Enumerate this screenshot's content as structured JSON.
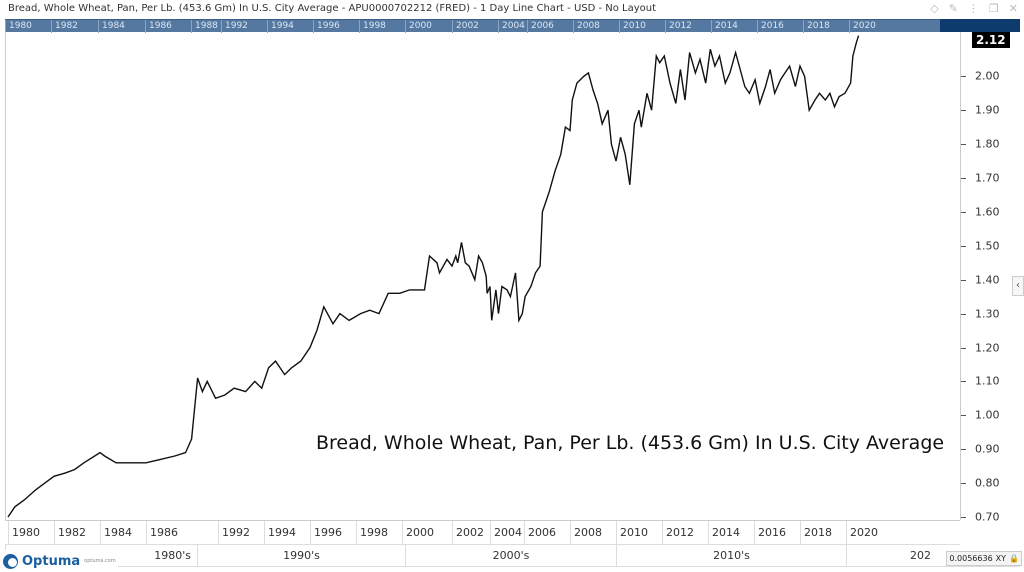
{
  "window": {
    "title": "Bread, Whole Wheat, Pan, Per Lb. (453.6 Gm) In U.S. City Average - APU0000702212 (FRED) - 1 Day Line Chart - USD - No Layout",
    "icons": [
      "diamond-icon",
      "pin-icon",
      "more-icon",
      "restore-icon",
      "close-icon"
    ]
  },
  "overview_ticks": [
    "1980",
    "1982",
    "1984",
    "1986",
    "1988",
    "1992",
    "1994",
    "1996",
    "1998",
    "2000",
    "2002",
    "2004",
    "2006",
    "2008",
    "2010",
    "2012",
    "2014",
    "2016",
    "2018",
    "2020"
  ],
  "last_price": "2.12",
  "annotation": "Bread, Whole Wheat, Pan, Per Lb. (453.6 Gm) In U.S. City Average",
  "decades": [
    "1980's",
    "1990's",
    "2000's",
    "2010's",
    "202"
  ],
  "footer": {
    "logo": "Optuma",
    "logo_url": "optuma.com",
    "scale": "0.0056636",
    "xy_label": "XY"
  },
  "colors": {
    "line": "#111111",
    "overview": "#5478a0",
    "overview_dark": "#0d3b6e",
    "logo": "#1a5fa0"
  },
  "chart_data": {
    "type": "line",
    "title": "Bread, Whole Wheat, Pan, Per Lb. (453.6 Gm) In U.S. City Average",
    "y_axis_position": "right",
    "ylim": [
      0.7,
      2.12
    ],
    "y_ticks": [
      "0.70",
      "0.80",
      "0.90",
      "1.00",
      "1.10",
      "1.20",
      "1.30",
      "1.40",
      "1.50",
      "1.60",
      "1.70",
      "1.80",
      "1.90",
      "2.00"
    ],
    "x_ticks": [
      "1980",
      "1982",
      "1984",
      "1986",
      "1992",
      "1994",
      "1996",
      "1998",
      "2000",
      "2002",
      "2004",
      "2006",
      "2008",
      "2010",
      "2012",
      "2014",
      "2016",
      "2018",
      "2020"
    ],
    "grid": false,
    "series": [
      {
        "points": [
          [
            1980.0,
            0.7
          ],
          [
            1980.3,
            0.73
          ],
          [
            1980.7,
            0.75
          ],
          [
            1981.2,
            0.78
          ],
          [
            1981.6,
            0.8
          ],
          [
            1982.0,
            0.82
          ],
          [
            1982.5,
            0.83
          ],
          [
            1982.9,
            0.84
          ],
          [
            1983.3,
            0.86
          ],
          [
            1984.0,
            0.89
          ],
          [
            1984.2,
            0.88
          ],
          [
            1984.7,
            0.86
          ],
          [
            1985.1,
            0.86
          ],
          [
            1985.5,
            0.86
          ],
          [
            1986.0,
            0.86
          ],
          [
            1987.2,
            0.87
          ],
          [
            1988.4,
            0.88
          ],
          [
            1989.3,
            0.89
          ],
          [
            1989.8,
            0.93
          ],
          [
            1990.3,
            1.11
          ],
          [
            1990.7,
            1.07
          ],
          [
            1991.1,
            1.1
          ],
          [
            1991.8,
            1.05
          ],
          [
            1992.3,
            1.06
          ],
          [
            1992.7,
            1.08
          ],
          [
            1993.2,
            1.07
          ],
          [
            1993.6,
            1.1
          ],
          [
            1993.9,
            1.08
          ],
          [
            1994.2,
            1.14
          ],
          [
            1994.5,
            1.16
          ],
          [
            1994.9,
            1.12
          ],
          [
            1995.2,
            1.14
          ],
          [
            1995.6,
            1.16
          ],
          [
            1996.0,
            1.2
          ],
          [
            1996.3,
            1.25
          ],
          [
            1996.6,
            1.32
          ],
          [
            1997.0,
            1.27
          ],
          [
            1997.3,
            1.3
          ],
          [
            1997.7,
            1.28
          ],
          [
            1998.2,
            1.3
          ],
          [
            1998.6,
            1.31
          ],
          [
            1999.0,
            1.3
          ],
          [
            1999.4,
            1.36
          ],
          [
            1999.9,
            1.36
          ],
          [
            2000.3,
            1.37
          ],
          [
            2000.9,
            1.37
          ],
          [
            2001.1,
            1.47
          ],
          [
            2001.4,
            1.45
          ],
          [
            2001.5,
            1.42
          ],
          [
            2001.8,
            1.46
          ],
          [
            2002.0,
            1.44
          ],
          [
            2002.2,
            1.47
          ],
          [
            2002.3,
            1.45
          ],
          [
            2002.5,
            1.51
          ],
          [
            2002.7,
            1.45
          ],
          [
            2002.9,
            1.44
          ],
          [
            2003.2,
            1.4
          ],
          [
            2003.4,
            1.47
          ],
          [
            2003.6,
            1.45
          ],
          [
            2003.8,
            1.41
          ],
          [
            2003.85,
            1.36
          ],
          [
            2004.0,
            1.38
          ],
          [
            2004.1,
            1.28
          ],
          [
            2004.35,
            1.37
          ],
          [
            2004.5,
            1.3
          ],
          [
            2004.7,
            1.38
          ],
          [
            2005.0,
            1.37
          ],
          [
            2005.2,
            1.35
          ],
          [
            2005.5,
            1.42
          ],
          [
            2005.7,
            1.28
          ],
          [
            2005.9,
            1.3
          ],
          [
            2006.05,
            1.35
          ],
          [
            2006.3,
            1.38
          ],
          [
            2006.5,
            1.42
          ],
          [
            2006.7,
            1.44
          ],
          [
            2006.8,
            1.6
          ],
          [
            2006.9,
            1.62
          ],
          [
            2007.1,
            1.66
          ],
          [
            2007.35,
            1.72
          ],
          [
            2007.6,
            1.77
          ],
          [
            2007.8,
            1.85
          ],
          [
            2008.0,
            1.84
          ],
          [
            2008.1,
            1.93
          ],
          [
            2008.3,
            1.98
          ],
          [
            2008.6,
            2.0
          ],
          [
            2008.8,
            2.01
          ],
          [
            2009.0,
            1.96
          ],
          [
            2009.2,
            1.92
          ],
          [
            2009.4,
            1.86
          ],
          [
            2009.65,
            1.9
          ],
          [
            2009.8,
            1.8
          ],
          [
            2010.0,
            1.75
          ],
          [
            2010.2,
            1.82
          ],
          [
            2010.4,
            1.77
          ],
          [
            2010.6,
            1.68
          ],
          [
            2010.8,
            1.86
          ],
          [
            2011.0,
            1.9
          ],
          [
            2011.1,
            1.85
          ],
          [
            2011.35,
            1.95
          ],
          [
            2011.55,
            1.9
          ],
          [
            2011.75,
            2.06
          ],
          [
            2011.9,
            2.04
          ],
          [
            2012.1,
            2.06
          ],
          [
            2012.35,
            1.98
          ],
          [
            2012.6,
            1.92
          ],
          [
            2012.8,
            2.02
          ],
          [
            2013.0,
            1.93
          ],
          [
            2013.2,
            2.07
          ],
          [
            2013.45,
            2.01
          ],
          [
            2013.65,
            2.05
          ],
          [
            2013.9,
            1.98
          ],
          [
            2014.1,
            2.08
          ],
          [
            2014.3,
            2.03
          ],
          [
            2014.5,
            2.06
          ],
          [
            2014.75,
            1.98
          ],
          [
            2014.95,
            2.01
          ],
          [
            2015.2,
            2.07
          ],
          [
            2015.4,
            2.02
          ],
          [
            2015.6,
            1.97
          ],
          [
            2015.8,
            1.95
          ],
          [
            2016.05,
            1.99
          ],
          [
            2016.25,
            1.92
          ],
          [
            2016.5,
            1.97
          ],
          [
            2016.7,
            2.02
          ],
          [
            2016.9,
            1.95
          ],
          [
            2017.15,
            1.99
          ],
          [
            2017.35,
            2.01
          ],
          [
            2017.55,
            2.03
          ],
          [
            2017.8,
            1.97
          ],
          [
            2018.0,
            2.03
          ],
          [
            2018.2,
            2.0
          ],
          [
            2018.4,
            1.9
          ],
          [
            2018.65,
            1.93
          ],
          [
            2018.85,
            1.95
          ],
          [
            2019.1,
            1.93
          ],
          [
            2019.3,
            1.95
          ],
          [
            2019.5,
            1.91
          ],
          [
            2019.7,
            1.94
          ],
          [
            2019.95,
            1.95
          ],
          [
            2020.2,
            1.98
          ],
          [
            2020.3,
            2.06
          ],
          [
            2020.45,
            2.1
          ],
          [
            2020.55,
            2.12
          ]
        ]
      }
    ]
  }
}
